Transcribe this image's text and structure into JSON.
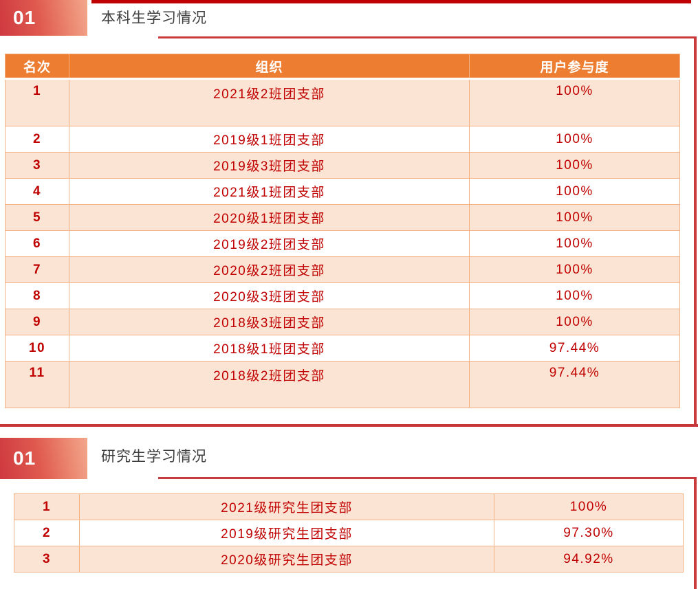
{
  "colors": {
    "accent_dark_red": "#c00000",
    "frame_red": "#c93a3c",
    "header_orange": "#ed7d31",
    "row_peach": "#fce4d5",
    "cell_border_orange": "#f2b183",
    "table_text_red": "#c00000",
    "title_gray": "#3d3d3d",
    "numbox_gradient_start": "#ce3940",
    "numbox_gradient_end": "#f3a88b"
  },
  "sections": [
    {
      "number": "01",
      "title": "本科生学习情况",
      "table": {
        "headers": [
          "名次",
          "组织",
          "用户参与度"
        ],
        "show_header": true,
        "rows": [
          {
            "rank": "1",
            "org": "2021级2班团支部",
            "rate": "100%",
            "shade": "peach",
            "tall": true
          },
          {
            "rank": "2",
            "org": "2019级1班团支部",
            "rate": "100%",
            "shade": "white",
            "tall": false
          },
          {
            "rank": "3",
            "org": "2019级3班团支部",
            "rate": "100%",
            "shade": "peach",
            "tall": false
          },
          {
            "rank": "4",
            "org": "2021级1班团支部",
            "rate": "100%",
            "shade": "white",
            "tall": false
          },
          {
            "rank": "5",
            "org": "2020级1班团支部",
            "rate": "100%",
            "shade": "peach",
            "tall": false
          },
          {
            "rank": "6",
            "org": "2019级2班团支部",
            "rate": "100%",
            "shade": "white",
            "tall": false
          },
          {
            "rank": "7",
            "org": "2020级2班团支部",
            "rate": "100%",
            "shade": "peach",
            "tall": false
          },
          {
            "rank": "8",
            "org": "2020级3班团支部",
            "rate": "100%",
            "shade": "white",
            "tall": false
          },
          {
            "rank": "9",
            "org": "2018级3班团支部",
            "rate": "100%",
            "shade": "peach",
            "tall": false
          },
          {
            "rank": "10",
            "org": "2018级1班团支部",
            "rate": "97.44%",
            "shade": "white",
            "tall": false
          },
          {
            "rank": "11",
            "org": "2018级2班团支部",
            "rate": "97.44%",
            "shade": "peach",
            "tall": true
          }
        ]
      }
    },
    {
      "number": "01",
      "title": "研究生学习情况",
      "table": {
        "headers": [],
        "show_header": false,
        "rows": [
          {
            "rank": "1",
            "org": "2021级研究生团支部",
            "rate": "100%",
            "shade": "peach",
            "tall": false
          },
          {
            "rank": "2",
            "org": "2019级研究生团支部",
            "rate": "97.30%",
            "shade": "white",
            "tall": false
          },
          {
            "rank": "3",
            "org": "2020级研究生团支部",
            "rate": "94.92%",
            "shade": "peach",
            "tall": false
          }
        ]
      }
    }
  ]
}
